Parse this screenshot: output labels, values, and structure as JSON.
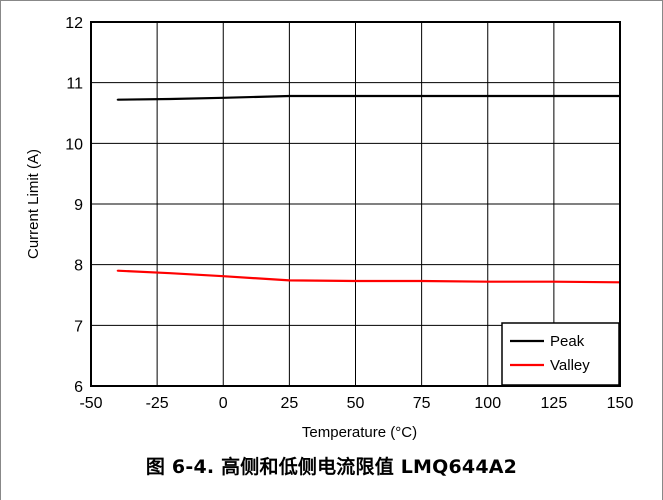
{
  "caption": "图 6-4. 高侧和低侧电流限值 LMQ644A2",
  "chart_data": {
    "type": "line",
    "xlabel": "Temperature (°C)",
    "ylabel": "Current Limit (A)",
    "xlim": [
      -50,
      150
    ],
    "ylim": [
      6,
      12
    ],
    "x_ticks": [
      -50,
      -25,
      0,
      25,
      50,
      75,
      100,
      125,
      150
    ],
    "y_ticks": [
      6,
      7,
      8,
      9,
      10,
      11,
      12
    ],
    "grid": true,
    "legend_position": "bottom-right",
    "series": [
      {
        "name": "Peak",
        "color": "#000000",
        "x": [
          -40,
          -20,
          0,
          25,
          50,
          75,
          100,
          125,
          150
        ],
        "y": [
          10.72,
          10.73,
          10.75,
          10.78,
          10.78,
          10.78,
          10.78,
          10.78,
          10.78
        ]
      },
      {
        "name": "Valley",
        "color": "#ff0000",
        "x": [
          -40,
          -20,
          0,
          25,
          50,
          75,
          100,
          125,
          150
        ],
        "y": [
          7.9,
          7.86,
          7.81,
          7.74,
          7.73,
          7.73,
          7.72,
          7.72,
          7.71
        ]
      }
    ]
  }
}
